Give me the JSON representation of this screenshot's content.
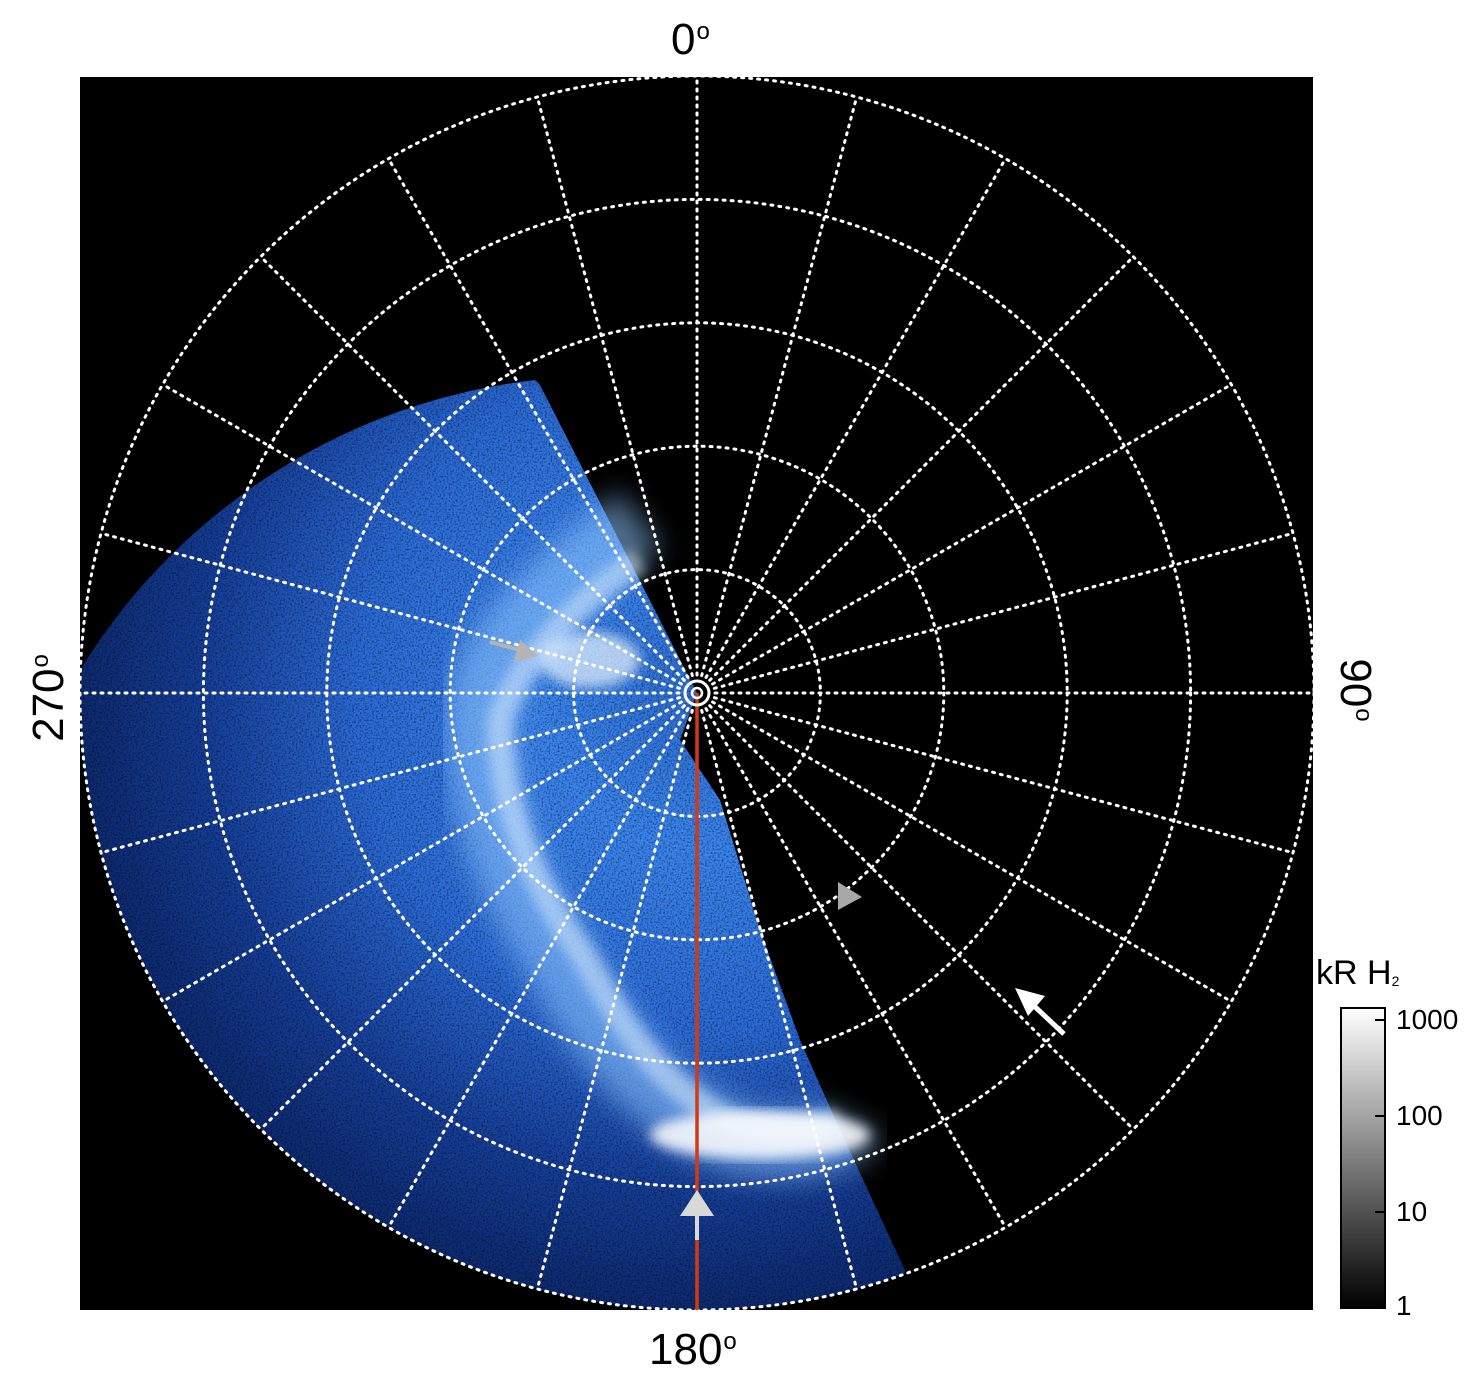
{
  "polar_plot": {
    "labels": {
      "top": "0",
      "right": "90",
      "bottom": "180",
      "left": "270",
      "degree_symbol": "o"
    },
    "colors": {
      "background": "#000000",
      "grid": "#ffffff",
      "aurora_dark": "#0a2a7a",
      "aurora_mid": "#1e6fe0",
      "aurora_bright": "#9fd0ff",
      "meridian_line": "#d23a12",
      "arrow_gray": "#b4b4b4",
      "arrow_white": "#ffffff"
    }
  },
  "colorbar": {
    "title": "kR H",
    "title_subscript": "2",
    "ticks": [
      "1000",
      "100",
      "10",
      "1"
    ],
    "scale": "log",
    "range": [
      1,
      1000
    ]
  }
}
